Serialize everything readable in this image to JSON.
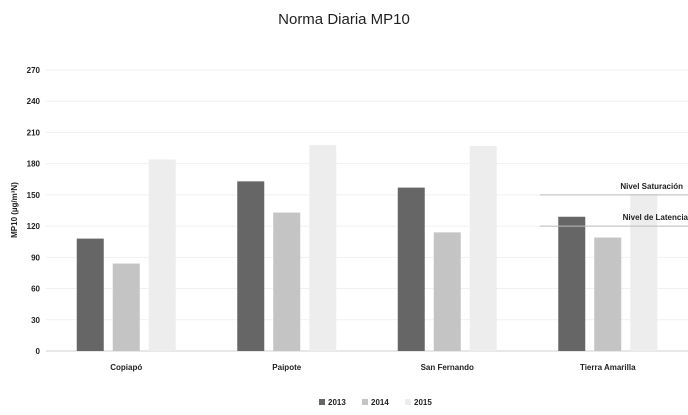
{
  "chart_data": {
    "type": "bar",
    "title": "Norma Diaria MP10",
    "ylabel": "MP10 (µg/m³N)",
    "xlabel": "",
    "ylim": [
      0,
      270
    ],
    "yticks": [
      0,
      30,
      60,
      90,
      120,
      150,
      180,
      210,
      240,
      270
    ],
    "grid": true,
    "legend_position": "bottom",
    "categories": [
      "Copiapó",
      "Paipote",
      "San Fernando",
      "Tierra Amarilla"
    ],
    "series": [
      {
        "name": "2013",
        "color": "#666666",
        "values": [
          108,
          163,
          157,
          129
        ]
      },
      {
        "name": "2014",
        "color": "#c4c4c4",
        "values": [
          84,
          133,
          114,
          109
        ]
      },
      {
        "name": "2015",
        "color": "#ededed",
        "values": [
          184,
          198,
          197,
          151
        ]
      }
    ],
    "reference_lines": [
      {
        "label": "Nivel Saturación",
        "value": 150
      },
      {
        "label": "Nivel de Latencia",
        "value": 120
      }
    ]
  }
}
